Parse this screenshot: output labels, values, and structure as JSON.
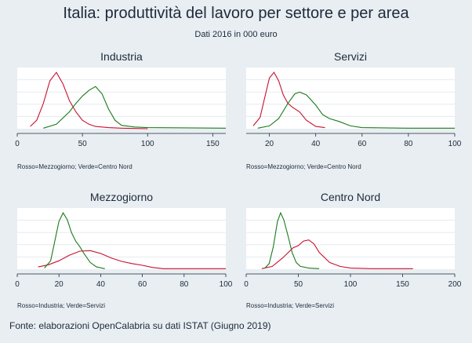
{
  "header": {
    "title": "Italia: produttività del lavoro per settore e per area",
    "subtitle": "Dati 2016 in 000 euro"
  },
  "footer": {
    "source": "Fonte: elaborazioni OpenCalabria su dati ISTAT (Giugno 2019)"
  },
  "colors": {
    "red": "#c8102e",
    "green": "#1a7a1a",
    "grid": "#ffffff",
    "plot_bg": "#ffffff",
    "page_bg": "#e8eef2"
  },
  "chart_data": [
    {
      "type": "line",
      "title": "Industria",
      "note": "Rosso=Mezzogiorno; Verde=Centro Nord",
      "xlim": [
        0,
        160
      ],
      "xticks": [
        0,
        50,
        100,
        150
      ],
      "ylim": [
        0,
        1
      ],
      "series": [
        {
          "color": "red",
          "x": [
            10,
            15,
            20,
            25,
            30,
            35,
            40,
            45,
            50,
            55,
            60,
            70,
            80,
            100
          ],
          "values": [
            0.04,
            0.15,
            0.45,
            0.85,
            1.0,
            0.8,
            0.5,
            0.3,
            0.15,
            0.08,
            0.04,
            0.02,
            0.01,
            0.0
          ]
        },
        {
          "color": "green",
          "x": [
            20,
            30,
            40,
            45,
            50,
            55,
            60,
            65,
            70,
            75,
            80,
            90,
            100,
            160
          ],
          "values": [
            0.01,
            0.08,
            0.3,
            0.45,
            0.58,
            0.68,
            0.75,
            0.62,
            0.35,
            0.15,
            0.06,
            0.03,
            0.02,
            0.01
          ]
        }
      ]
    },
    {
      "type": "line",
      "title": "Servizi",
      "note": "Rosso=Mezzogiorno; Verde=Centro Nord",
      "xlim": [
        10,
        100
      ],
      "xticks": [
        20,
        40,
        60,
        80,
        100
      ],
      "ylim": [
        0,
        1
      ],
      "series": [
        {
          "color": "red",
          "x": [
            13,
            16,
            18,
            20,
            22,
            24,
            26,
            28,
            30,
            33,
            36,
            40,
            44
          ],
          "values": [
            0.05,
            0.2,
            0.55,
            0.9,
            1.0,
            0.85,
            0.6,
            0.45,
            0.38,
            0.3,
            0.15,
            0.04,
            0.02
          ]
        },
        {
          "color": "green",
          "x": [
            15,
            20,
            24,
            28,
            31,
            33,
            36,
            40,
            43,
            46,
            50,
            55,
            60,
            80,
            100
          ],
          "values": [
            0.01,
            0.05,
            0.18,
            0.45,
            0.62,
            0.65,
            0.6,
            0.42,
            0.25,
            0.18,
            0.13,
            0.05,
            0.02,
            0.01,
            0.01
          ]
        }
      ]
    },
    {
      "type": "line",
      "title": "Mezzogiorno",
      "note": "Rosso=Industria; Verde=Servizi",
      "xlim": [
        0,
        100
      ],
      "xticks": [
        0,
        20,
        40,
        60,
        80,
        100
      ],
      "ylim": [
        0,
        1
      ],
      "series": [
        {
          "color": "red",
          "x": [
            10,
            15,
            20,
            25,
            30,
            35,
            40,
            45,
            50,
            55,
            60,
            65,
            70,
            80,
            100
          ],
          "values": [
            0.04,
            0.08,
            0.15,
            0.25,
            0.32,
            0.33,
            0.28,
            0.2,
            0.14,
            0.1,
            0.07,
            0.03,
            0.01,
            0.01,
            0.01
          ]
        },
        {
          "color": "green",
          "x": [
            13,
            16,
            18,
            20,
            22,
            24,
            26,
            28,
            30,
            32,
            35,
            38,
            42
          ],
          "values": [
            0.02,
            0.15,
            0.5,
            0.85,
            1.0,
            0.88,
            0.65,
            0.5,
            0.4,
            0.28,
            0.12,
            0.04,
            0.01
          ]
        }
      ]
    },
    {
      "type": "line",
      "title": "Centro Nord",
      "note": "Rosso=Industria; Verde=Servizi",
      "xlim": [
        0,
        200
      ],
      "xticks": [
        0,
        50,
        100,
        150,
        200
      ],
      "ylim": [
        0,
        1
      ],
      "series": [
        {
          "color": "red",
          "x": [
            15,
            25,
            35,
            45,
            50,
            55,
            60,
            65,
            70,
            80,
            90,
            100,
            120,
            160
          ],
          "values": [
            0.01,
            0.05,
            0.2,
            0.38,
            0.42,
            0.5,
            0.52,
            0.45,
            0.3,
            0.12,
            0.05,
            0.02,
            0.01,
            0.01
          ]
        },
        {
          "color": "green",
          "x": [
            18,
            22,
            26,
            30,
            33,
            36,
            40,
            44,
            48,
            52,
            60,
            70
          ],
          "values": [
            0.02,
            0.1,
            0.4,
            0.85,
            1.0,
            0.88,
            0.6,
            0.3,
            0.12,
            0.05,
            0.02,
            0.01
          ]
        }
      ]
    }
  ]
}
